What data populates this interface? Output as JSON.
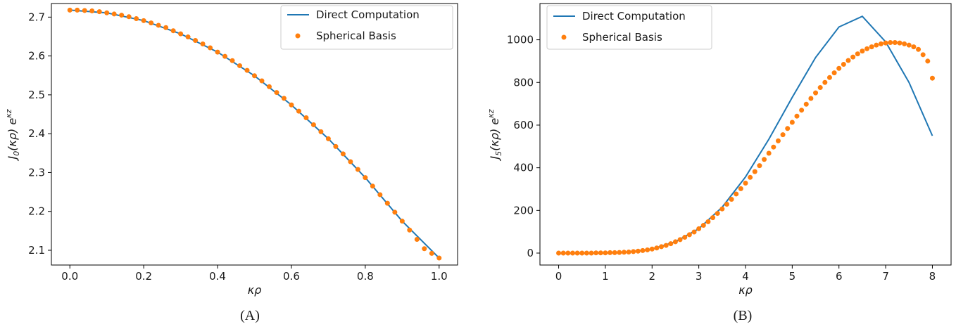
{
  "chart_data": [
    {
      "panel_label": "(A)",
      "type": "line",
      "xlabel": "κρ",
      "ylabel": {
        "main": "J",
        "sub": "0",
        "rest": "(κρ) e",
        "sup": "κz"
      },
      "xlim": [
        -0.05,
        1.05
      ],
      "ylim": [
        2.062,
        2.735
      ],
      "xticks": [
        0.0,
        0.2,
        0.4,
        0.6,
        0.8,
        1.0
      ],
      "xtick_labels": [
        "0.0",
        "0.2",
        "0.4",
        "0.6",
        "0.8",
        "1.0"
      ],
      "yticks": [
        2.1,
        2.2,
        2.3,
        2.4,
        2.5,
        2.6,
        2.7
      ],
      "ytick_labels": [
        "2.1",
        "2.2",
        "2.3",
        "2.4",
        "2.5",
        "2.6",
        "2.7"
      ],
      "legend_position": "top-right",
      "series": [
        {
          "name": "Direct Computation",
          "style": "line",
          "color": "#1f77b4",
          "x": [
            0.0,
            0.1,
            0.2,
            0.3,
            0.4,
            0.5,
            0.6,
            0.7,
            0.8,
            0.9,
            1.0
          ],
          "y": [
            2.718,
            2.711,
            2.691,
            2.657,
            2.61,
            2.549,
            2.474,
            2.387,
            2.287,
            2.175,
            2.08
          ]
        },
        {
          "name": "Spherical Basis",
          "style": "markers",
          "color": "#ff7f0e",
          "x": [
            0.0,
            0.02,
            0.04,
            0.06,
            0.08,
            0.1,
            0.12,
            0.14,
            0.16,
            0.18,
            0.2,
            0.22,
            0.24,
            0.26,
            0.28,
            0.3,
            0.32,
            0.34,
            0.36,
            0.38,
            0.4,
            0.42,
            0.44,
            0.46,
            0.48,
            0.5,
            0.52,
            0.54,
            0.56,
            0.58,
            0.6,
            0.62,
            0.64,
            0.66,
            0.68,
            0.7,
            0.72,
            0.74,
            0.76,
            0.78,
            0.8,
            0.82,
            0.84,
            0.86,
            0.88,
            0.9,
            0.92,
            0.94,
            0.96,
            0.98,
            1.0
          ],
          "y": [
            2.718,
            2.718,
            2.717,
            2.716,
            2.714,
            2.711,
            2.708,
            2.705,
            2.701,
            2.696,
            2.691,
            2.685,
            2.679,
            2.673,
            2.665,
            2.657,
            2.649,
            2.64,
            2.631,
            2.621,
            2.61,
            2.599,
            2.588,
            2.575,
            2.563,
            2.549,
            2.536,
            2.521,
            2.506,
            2.491,
            2.474,
            2.458,
            2.441,
            2.423,
            2.405,
            2.387,
            2.367,
            2.348,
            2.328,
            2.308,
            2.287,
            2.265,
            2.243,
            2.221,
            2.198,
            2.175,
            2.152,
            2.128,
            2.104,
            2.092,
            2.08
          ]
        }
      ]
    },
    {
      "panel_label": "(B)",
      "type": "line",
      "xlabel": "κρ",
      "ylabel": {
        "main": "J",
        "sub": "5",
        "rest": "(κρ) e",
        "sup": "κz"
      },
      "xlim": [
        -0.4,
        8.4
      ],
      "ylim": [
        -56,
        1170
      ],
      "xticks": [
        0,
        1,
        2,
        3,
        4,
        5,
        6,
        7,
        8
      ],
      "xtick_labels": [
        "0",
        "1",
        "2",
        "3",
        "4",
        "5",
        "6",
        "7",
        "8"
      ],
      "yticks": [
        0,
        200,
        400,
        600,
        800,
        1000
      ],
      "ytick_labels": [
        "0",
        "200",
        "400",
        "600",
        "800",
        "1000"
      ],
      "legend_position": "top-left",
      "series": [
        {
          "name": "Direct Computation",
          "style": "line",
          "color": "#1f77b4",
          "x": [
            0.0,
            0.5,
            1.0,
            1.5,
            2.0,
            2.5,
            3.0,
            3.5,
            4.0,
            4.5,
            5.0,
            5.5,
            6.0,
            6.5,
            7.0,
            7.5,
            8.0
          ],
          "y": [
            0,
            0,
            1,
            5,
            19,
            53,
            114,
            215,
            357,
            534,
            730,
            917,
            1060,
            1110,
            990,
            800,
            550
          ]
        },
        {
          "name": "Spherical Basis",
          "style": "markers",
          "color": "#ff7f0e",
          "x": [
            0.0,
            0.1,
            0.2,
            0.3,
            0.4,
            0.5,
            0.6,
            0.7,
            0.8,
            0.9,
            1.0,
            1.1,
            1.2,
            1.3,
            1.4,
            1.5,
            1.6,
            1.7,
            1.8,
            1.9,
            2.0,
            2.1,
            2.2,
            2.3,
            2.4,
            2.5,
            2.6,
            2.7,
            2.8,
            2.9,
            3.0,
            3.1,
            3.2,
            3.3,
            3.4,
            3.5,
            3.6,
            3.7,
            3.8,
            3.9,
            4.0,
            4.1,
            4.2,
            4.3,
            4.4,
            4.5,
            4.6,
            4.7,
            4.8,
            4.9,
            5.0,
            5.1,
            5.2,
            5.3,
            5.4,
            5.5,
            5.6,
            5.7,
            5.8,
            5.9,
            6.0,
            6.1,
            6.2,
            6.3,
            6.4,
            6.5,
            6.6,
            6.7,
            6.8,
            6.9,
            7.0,
            7.1,
            7.2,
            7.3,
            7.4,
            7.5,
            7.6,
            7.7,
            7.8,
            7.9,
            8.0
          ],
          "y": [
            0,
            0,
            0,
            0,
            0,
            0,
            0,
            0,
            1,
            1,
            1,
            2,
            2,
            3,
            4,
            5,
            7,
            9,
            12,
            15,
            19,
            24,
            30,
            36,
            44,
            53,
            63,
            74,
            86,
            99,
            114,
            130,
            147,
            166,
            186,
            207,
            229,
            252,
            277,
            302,
            328,
            355,
            382,
            410,
            439,
            468,
            497,
            526,
            555,
            584,
            613,
            642,
            670,
            698,
            725,
            751,
            776,
            800,
            823,
            845,
            866,
            885,
            903,
            919,
            934,
            947,
            958,
            967,
            975,
            981,
            985,
            987,
            987,
            985,
            981,
            975,
            967,
            955,
            930,
            900,
            820
          ]
        }
      ]
    }
  ]
}
